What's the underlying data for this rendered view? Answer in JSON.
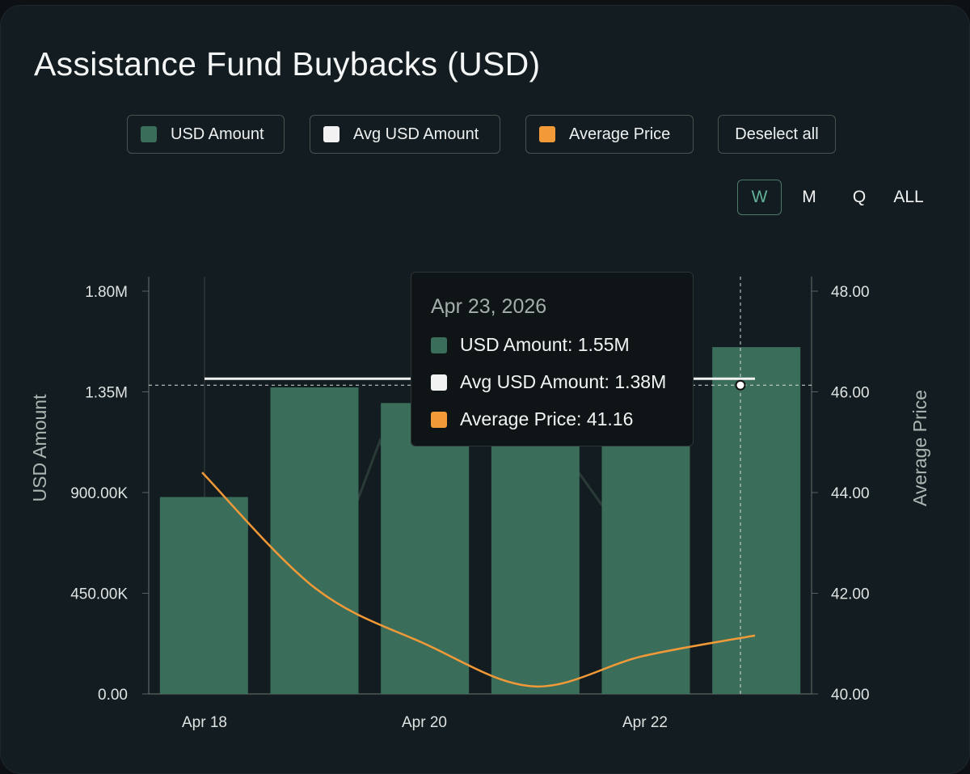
{
  "title": "Assistance Fund Buybacks (USD)",
  "legend": [
    {
      "label": "USD Amount",
      "color": "#3b6e5a"
    },
    {
      "label": "Avg USD Amount",
      "color": "#f2f2f2"
    },
    {
      "label": "Average Price",
      "color": "#f29a38"
    }
  ],
  "deselect_label": "Deselect all",
  "periods": [
    "W",
    "M",
    "Q",
    "ALL"
  ],
  "active_period": "W",
  "tooltip": {
    "date": "Apr 23, 2026",
    "rows": [
      {
        "text": "USD Amount: 1.55M",
        "color": "#3b6e5a"
      },
      {
        "text": "Avg USD Amount: 1.38M",
        "color": "#f2f2f2"
      },
      {
        "text": "Average Price: 41.16",
        "color": "#f29a38"
      }
    ]
  },
  "chart_data": {
    "type": "bar",
    "categories": [
      "Apr 18",
      "Apr 19",
      "Apr 20",
      "Apr 21",
      "Apr 22",
      "Apr 23"
    ],
    "x_tick_labels": [
      "Apr 18",
      "Apr 20",
      "Apr 22"
    ],
    "series": [
      {
        "name": "USD Amount",
        "type": "bar",
        "axis": "left",
        "color": "#3b6e5a",
        "values": [
          880000,
          1370000,
          1300000,
          1120000,
          1290000,
          1550000
        ]
      },
      {
        "name": "Avg USD Amount",
        "type": "line",
        "axis": "left",
        "color": "#f2f2f2",
        "values": [
          1380000,
          1380000,
          1380000,
          1380000,
          1380000,
          1380000
        ]
      },
      {
        "name": "Average Price",
        "type": "line",
        "axis": "right",
        "color": "#f29a38",
        "values": [
          44.4,
          42.1,
          41.0,
          40.15,
          40.75,
          41.16
        ]
      }
    ],
    "left_axis": {
      "label": "USD Amount",
      "ylim": [
        0,
        1800000
      ],
      "ticks": [
        {
          "v": 0,
          "t": "0.00"
        },
        {
          "v": 450000,
          "t": "450.00K"
        },
        {
          "v": 900000,
          "t": "900.00K"
        },
        {
          "v": 1350000,
          "t": "1.35M"
        },
        {
          "v": 1800000,
          "t": "1.80M"
        }
      ]
    },
    "right_axis": {
      "label": "Average Price",
      "ylim": [
        40,
        48
      ],
      "ticks": [
        {
          "v": 40,
          "t": "40.00"
        },
        {
          "v": 42,
          "t": "42.00"
        },
        {
          "v": 44,
          "t": "44.00"
        },
        {
          "v": 46,
          "t": "46.00"
        },
        {
          "v": 48,
          "t": "48.00"
        }
      ]
    },
    "grid": false,
    "hover_index": 5
  }
}
